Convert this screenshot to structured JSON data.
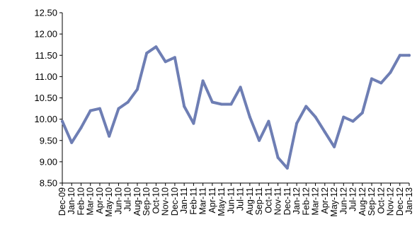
{
  "chart_data": {
    "type": "line",
    "title": "",
    "xlabel": "",
    "ylabel": "",
    "ylim": [
      8.5,
      12.5
    ],
    "yticks": [
      "12.50",
      "12.00",
      "11.50",
      "11.00",
      "10.50",
      "10.00",
      "9.50",
      "9.00",
      "8.50"
    ],
    "ytick_values": [
      12.5,
      12.0,
      11.5,
      11.0,
      10.5,
      10.0,
      9.5,
      9.0,
      8.5
    ],
    "grid": false,
    "legend": "none",
    "x_ticks": [
      "Dec-09",
      "Jan-10",
      "Feb-10",
      "Mar-10",
      "Apr-10",
      "May-10",
      "Jun-10",
      "Jul-10",
      "Aug-10",
      "Sep-10",
      "Oct-10",
      "Nov-10",
      "Dec-10",
      "Jan-11",
      "Feb-11",
      "Mar-11",
      "Apr-11",
      "May-11",
      "Jun-11",
      "Jul-11",
      "Aug-11",
      "Sep-11",
      "Oct-11",
      "Nov-11",
      "Dec-11",
      "Jan-12",
      "Feb-12",
      "Mar-12",
      "Apr-12",
      "May-12",
      "Jun-12",
      "Jul-12",
      "Aug-12",
      "Sep-12",
      "Oct-12",
      "Nov-12",
      "Dec-12",
      "Jan-13"
    ],
    "series": [
      {
        "color": "#6E7EB4",
        "x": [
          "Dec-09",
          "Jan-10",
          "Feb-10",
          "Mar-10",
          "Apr-10",
          "May-10",
          "Jun-10",
          "Jul-10",
          "Aug-10",
          "Sep-10",
          "Oct-10",
          "Nov-10",
          "Dec-10",
          "Jan-11",
          "Feb-11",
          "Mar-11",
          "Apr-11",
          "May-11",
          "Jun-11",
          "Jul-11",
          "Aug-11",
          "Sep-11",
          "Oct-11",
          "Nov-11",
          "Dec-11",
          "Jan-12",
          "Feb-12",
          "Mar-12",
          "Apr-12",
          "May-12",
          "Jun-12",
          "Jul-12",
          "Aug-12",
          "Sep-12",
          "Oct-12",
          "Nov-12",
          "Dec-12",
          "Jan-13"
        ],
        "values": [
          9.95,
          9.45,
          9.8,
          10.2,
          10.25,
          9.6,
          10.25,
          10.4,
          10.7,
          11.55,
          11.7,
          11.35,
          11.45,
          10.3,
          9.9,
          10.9,
          10.4,
          10.35,
          10.35,
          10.75,
          10.05,
          9.5,
          9.95,
          9.1,
          8.85,
          9.9,
          10.3,
          10.05,
          9.7,
          9.35,
          10.05,
          9.95,
          10.15,
          10.95,
          10.85,
          11.1,
          11.5,
          11.5
        ]
      }
    ]
  }
}
